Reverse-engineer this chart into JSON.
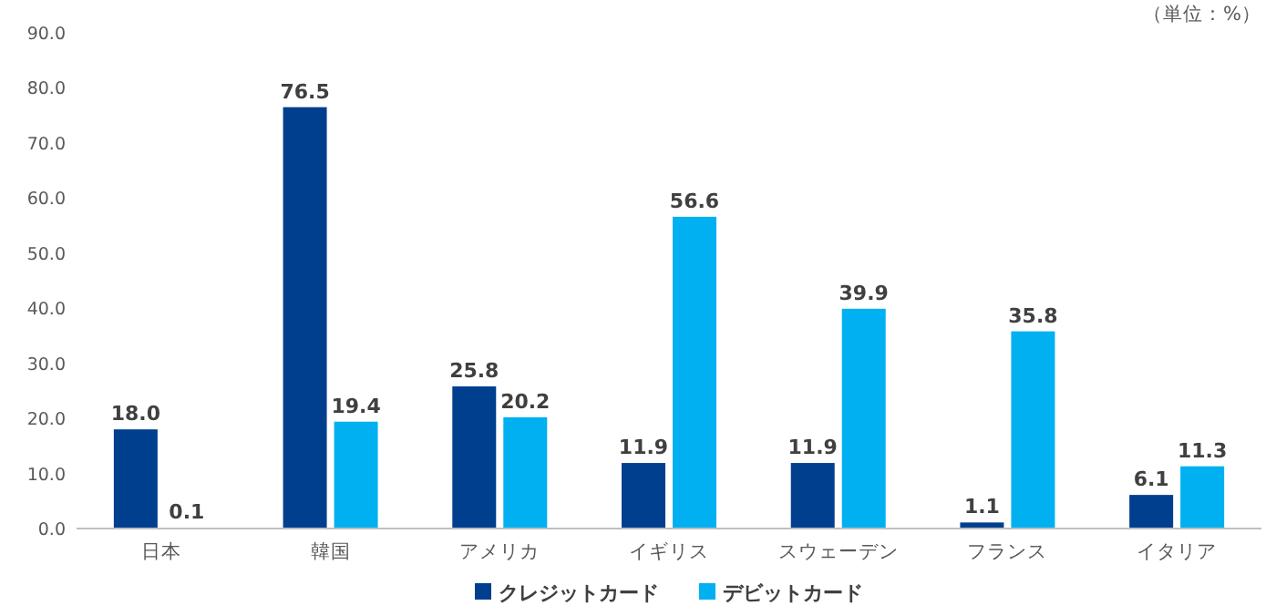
{
  "chart_data": {
    "type": "bar",
    "categories": [
      "日本",
      "韓国",
      "アメリカ",
      "イギリス",
      "スウェーデン",
      "フランス",
      "イタリア"
    ],
    "series": [
      {
        "name": "クレジットカード",
        "color": "#003f8e",
        "values": [
          18.0,
          76.5,
          25.8,
          11.9,
          11.9,
          1.1,
          6.1
        ],
        "value_labels": [
          "18.0",
          "76.5",
          "25.8",
          "11.9",
          "11.9",
          "1.1",
          "6.1"
        ]
      },
      {
        "name": "デビットカード",
        "color": "#00b0f0",
        "values": [
          0.1,
          19.4,
          20.2,
          56.6,
          39.9,
          35.8,
          11.3
        ],
        "value_labels": [
          "0.1",
          "19.4",
          "20.2",
          "56.6",
          "39.9",
          "35.8",
          "11.3"
        ]
      }
    ],
    "ylim": [
      0,
      90
    ],
    "yticks": [
      {
        "value": 0,
        "label": "0.0"
      },
      {
        "value": 10,
        "label": "10.0"
      },
      {
        "value": 20,
        "label": "20.0"
      },
      {
        "value": 30,
        "label": "30.0"
      },
      {
        "value": 40,
        "label": "40.0"
      },
      {
        "value": 50,
        "label": "50.0"
      },
      {
        "value": 60,
        "label": "60.0"
      },
      {
        "value": 70,
        "label": "70.0"
      },
      {
        "value": 80,
        "label": "80.0"
      },
      {
        "value": 90,
        "label": "90.0"
      }
    ],
    "legend": "bottom",
    "annotations": [
      "（単位：%）"
    ]
  }
}
